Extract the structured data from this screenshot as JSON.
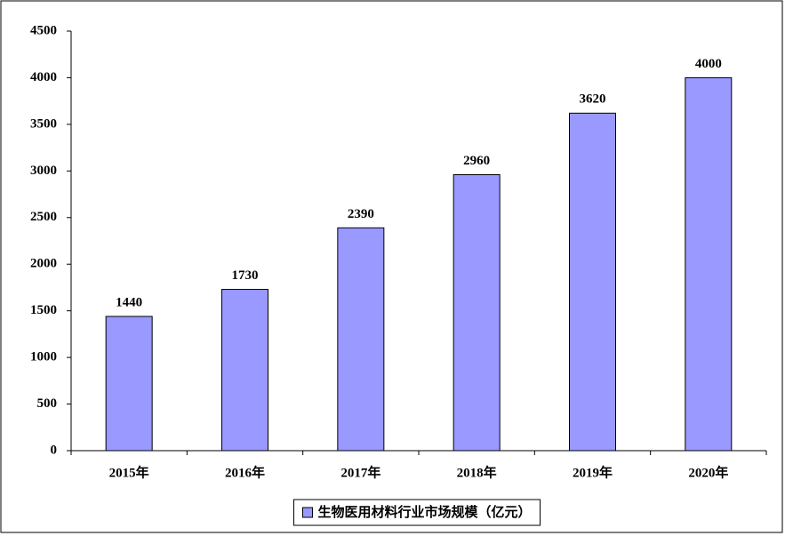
{
  "chart_data": {
    "type": "bar",
    "categories": [
      "2015年",
      "2016年",
      "2017年",
      "2018年",
      "2019年",
      "2020年"
    ],
    "series": [
      {
        "name": "生物医用材料行业市场规模（亿元）",
        "color": "#9999ff",
        "values": [
          1440,
          1730,
          2390,
          2960,
          3620,
          4000
        ]
      }
    ],
    "ylim": [
      0,
      4500
    ],
    "yticks": [
      0,
      500,
      1000,
      1500,
      2000,
      2500,
      3000,
      3500,
      4000,
      4500
    ],
    "grid": false,
    "legend": "bottom",
    "data_labels": true
  }
}
